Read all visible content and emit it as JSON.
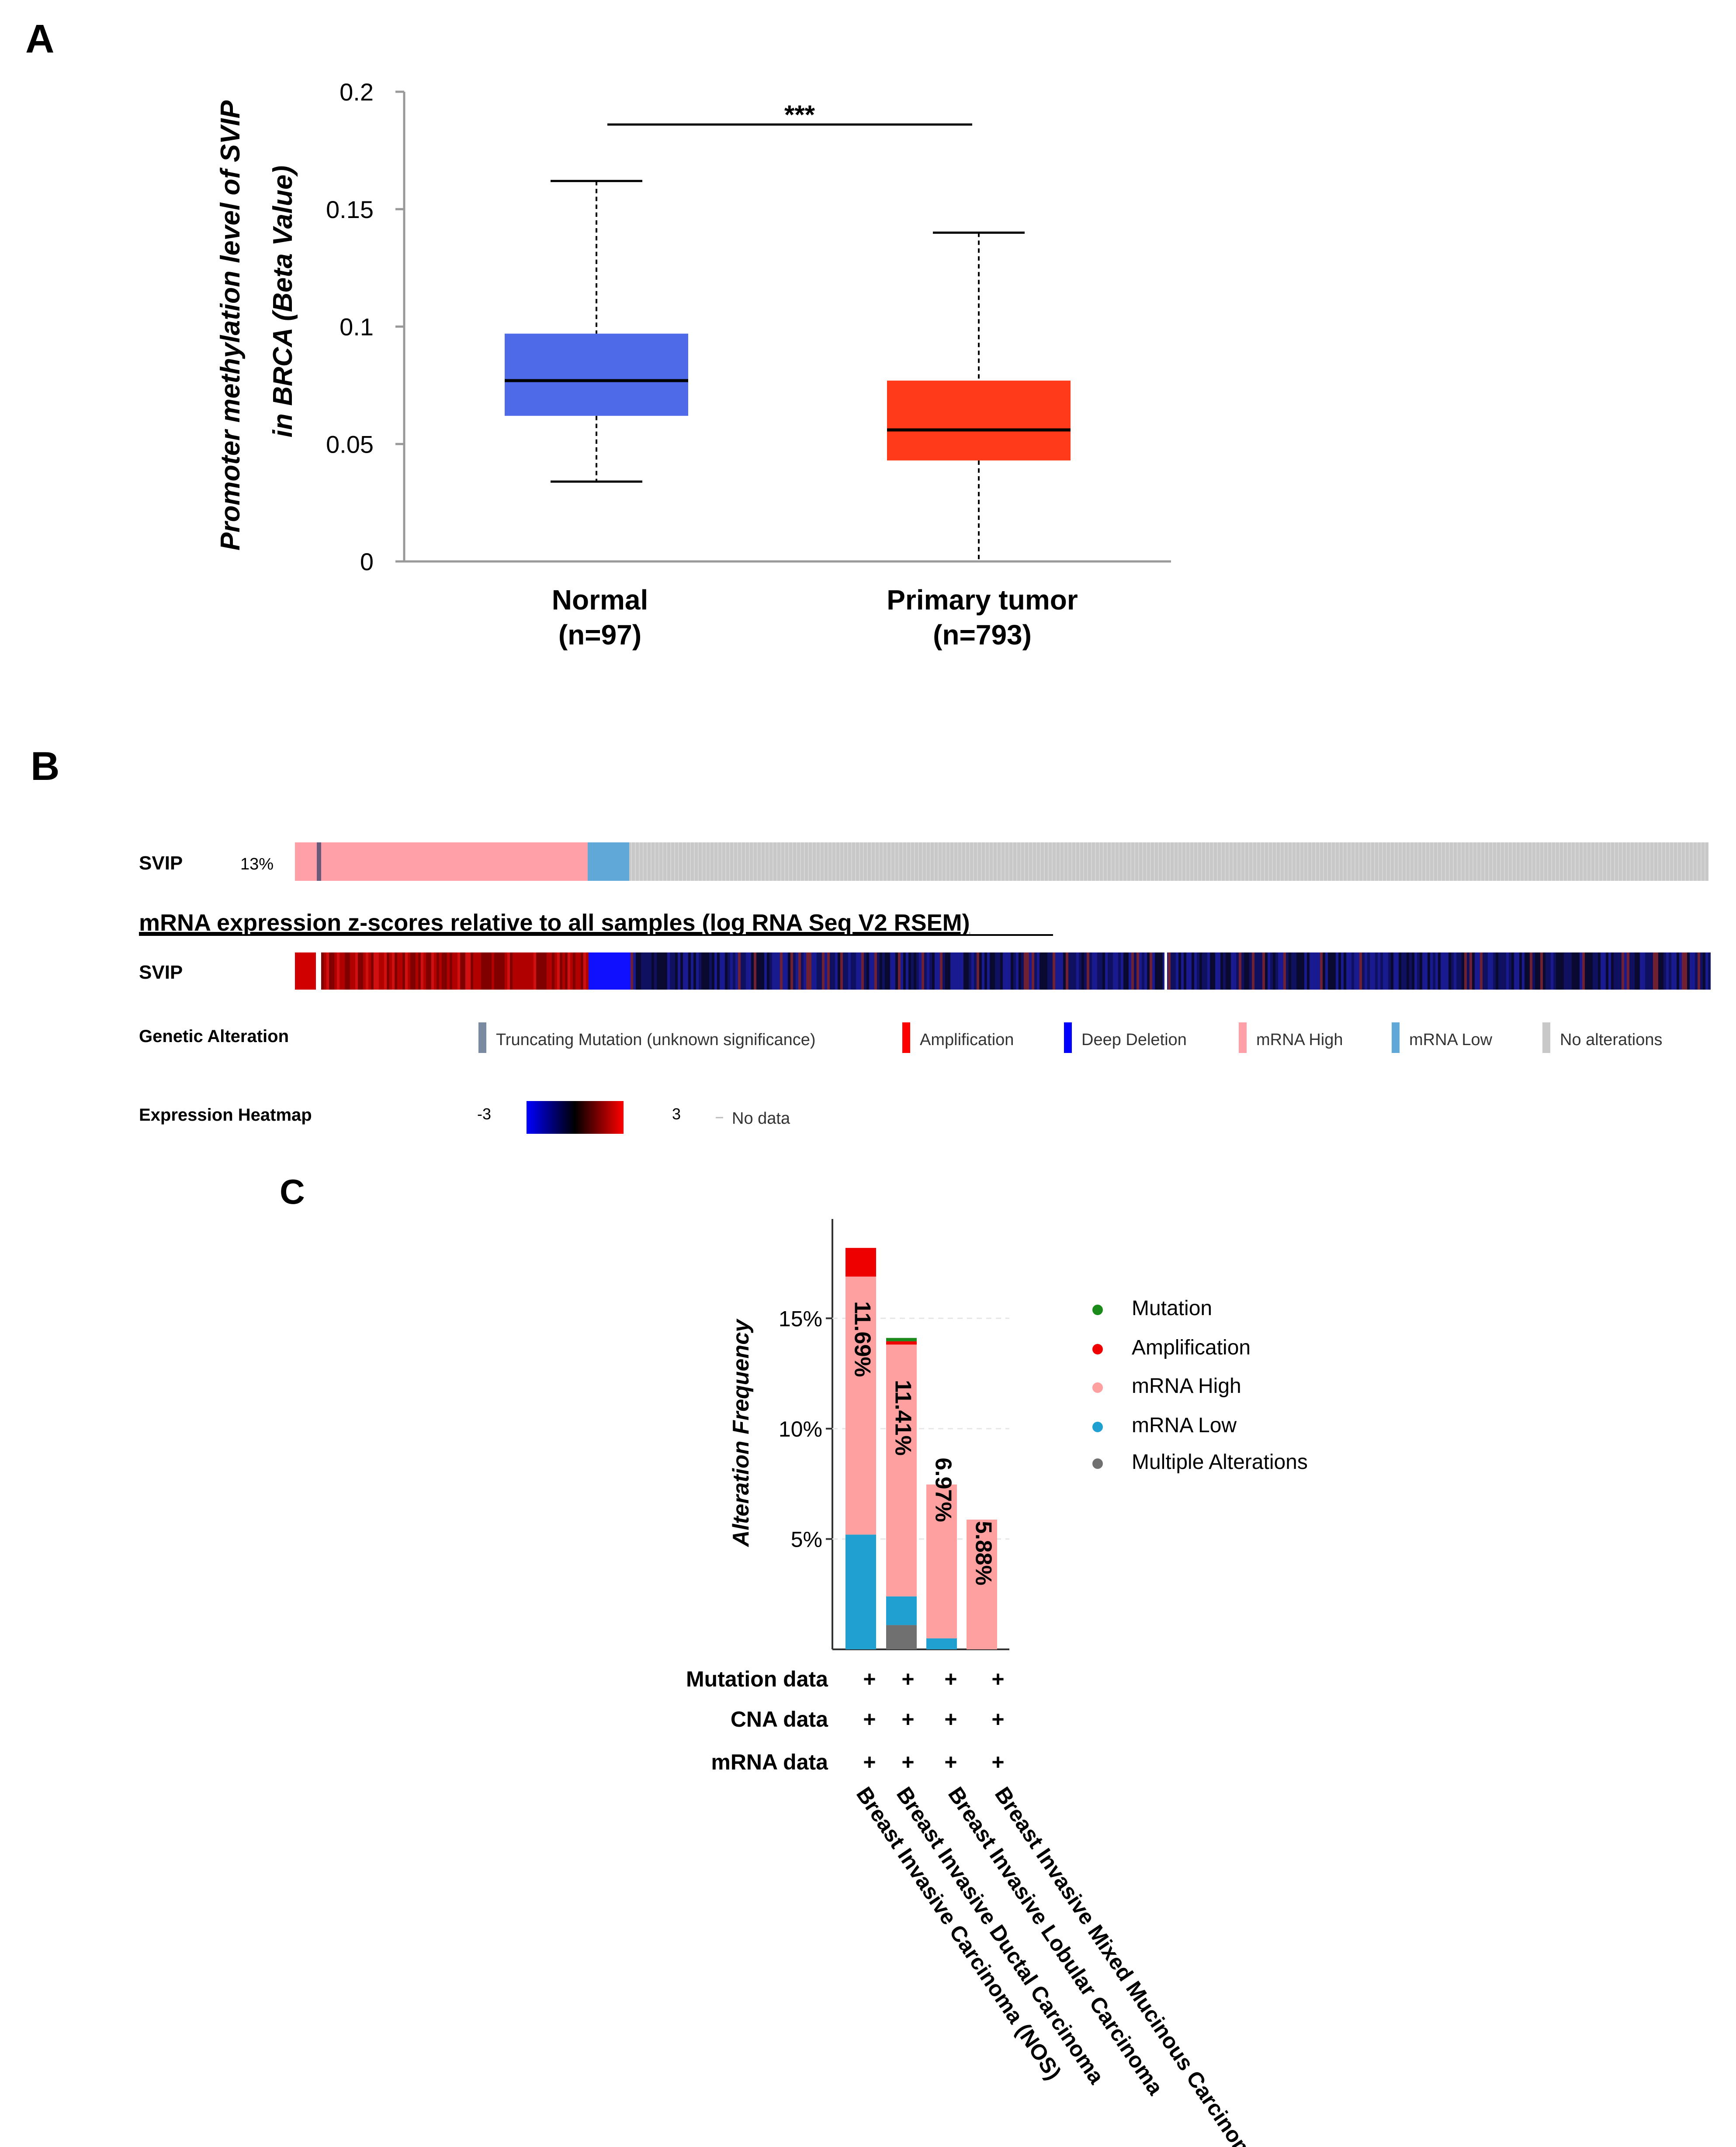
{
  "panels": {
    "a": "A",
    "b": "B",
    "c": "C"
  },
  "chart_data": [
    {
      "id": "A",
      "type": "box",
      "ylabel_line1": "Promoter methylation level of SVIP",
      "ylabel_line2": "in BRCA (Beta Value)",
      "ylim": [
        0,
        0.2
      ],
      "yticks": [
        "0",
        "0.05",
        "0.1",
        "0.15",
        "0.2"
      ],
      "ytick_values": [
        0,
        0.05,
        0.1,
        0.15,
        0.2
      ],
      "significance": "***",
      "groups": [
        {
          "name": "Normal",
          "n_label": "(n=97)",
          "min": 0.034,
          "q1": 0.062,
          "median": 0.077,
          "q3": 0.097,
          "max": 0.162,
          "color": "#4f6ae8"
        },
        {
          "name": "Primary tumor",
          "n_label": "(n=793)",
          "min": 0.0,
          "q1": 0.043,
          "median": 0.056,
          "q3": 0.077,
          "max": 0.14,
          "color": "#ff3a1a"
        }
      ]
    },
    {
      "id": "B",
      "type": "heatmap",
      "gene": "SVIP",
      "altered_pct": "13%",
      "subtitle": "mRNA expression z-scores relative to all samples (log RNA Seq V2 RSEM)",
      "track_gene": "SVIP",
      "legend_title_alteration": "Genetic Alteration",
      "legend_title_heatmap": "Expression Heatmap",
      "alteration_legend": [
        {
          "label": "Truncating Mutation (unknown significance)",
          "color": "#7a8aa0"
        },
        {
          "label": "Amplification",
          "color": "#ff0000"
        },
        {
          "label": "Deep Deletion",
          "color": "#0000ff"
        },
        {
          "label": "mRNA High",
          "color": "#ffa0a8"
        },
        {
          "label": "mRNA Low",
          "color": "#5fa8d8"
        },
        {
          "label": "No alterations",
          "color": "#c8c8c8"
        }
      ],
      "heatmap_min": "-3",
      "heatmap_max": "3",
      "no_data": "No data"
    },
    {
      "id": "C",
      "type": "bar",
      "ylabel": "Alteration Frequency",
      "yticks": [
        "5%",
        "10%",
        "15%"
      ],
      "ytick_values": [
        5,
        10,
        15
      ],
      "ylim": [
        0,
        19.5
      ],
      "categories": [
        "Breast Invasive Carcinoma (NOS)",
        "Breast Invasive Ductal Carcinoma",
        "Breast Invasive Lobular Carcinoma",
        "Breast Invasive Mixed Mucinous Carcinoma"
      ],
      "bar_labels": [
        "11.69%",
        "11.41%",
        "6.97%",
        "5.88%"
      ],
      "series": [
        {
          "name": "Multiple Alterations",
          "color": "#707070",
          "values": [
            0,
            1.1,
            0,
            0
          ]
        },
        {
          "name": "mRNA Low",
          "color": "#1fa0d0",
          "values": [
            5.2,
            1.3,
            0.5,
            0
          ]
        },
        {
          "name": "mRNA High",
          "color": "#ffa0a0",
          "values": [
            11.69,
            11.41,
            6.97,
            5.88
          ]
        },
        {
          "name": "Amplification",
          "color": "#ee0000",
          "values": [
            1.3,
            0.15,
            0,
            0
          ]
        },
        {
          "name": "Mutation",
          "color": "#1a8a1a",
          "values": [
            0,
            0.15,
            0,
            0
          ]
        }
      ],
      "legend": [
        {
          "label": "Mutation",
          "color": "#1a8a1a"
        },
        {
          "label": "Amplification",
          "color": "#ee0000"
        },
        {
          "label": "mRNA High",
          "color": "#ffa0a0"
        },
        {
          "label": "mRNA Low",
          "color": "#1fa0d0"
        },
        {
          "label": "Multiple Alterations",
          "color": "#707070"
        }
      ],
      "data_rows": [
        {
          "label": "Mutation data",
          "marks": [
            "+",
            "+",
            "+",
            "+"
          ]
        },
        {
          "label": "CNA data",
          "marks": [
            "+",
            "+",
            "+",
            "+"
          ]
        },
        {
          "label": "mRNA data",
          "marks": [
            "+",
            "+",
            "+",
            "+"
          ]
        }
      ]
    }
  ]
}
